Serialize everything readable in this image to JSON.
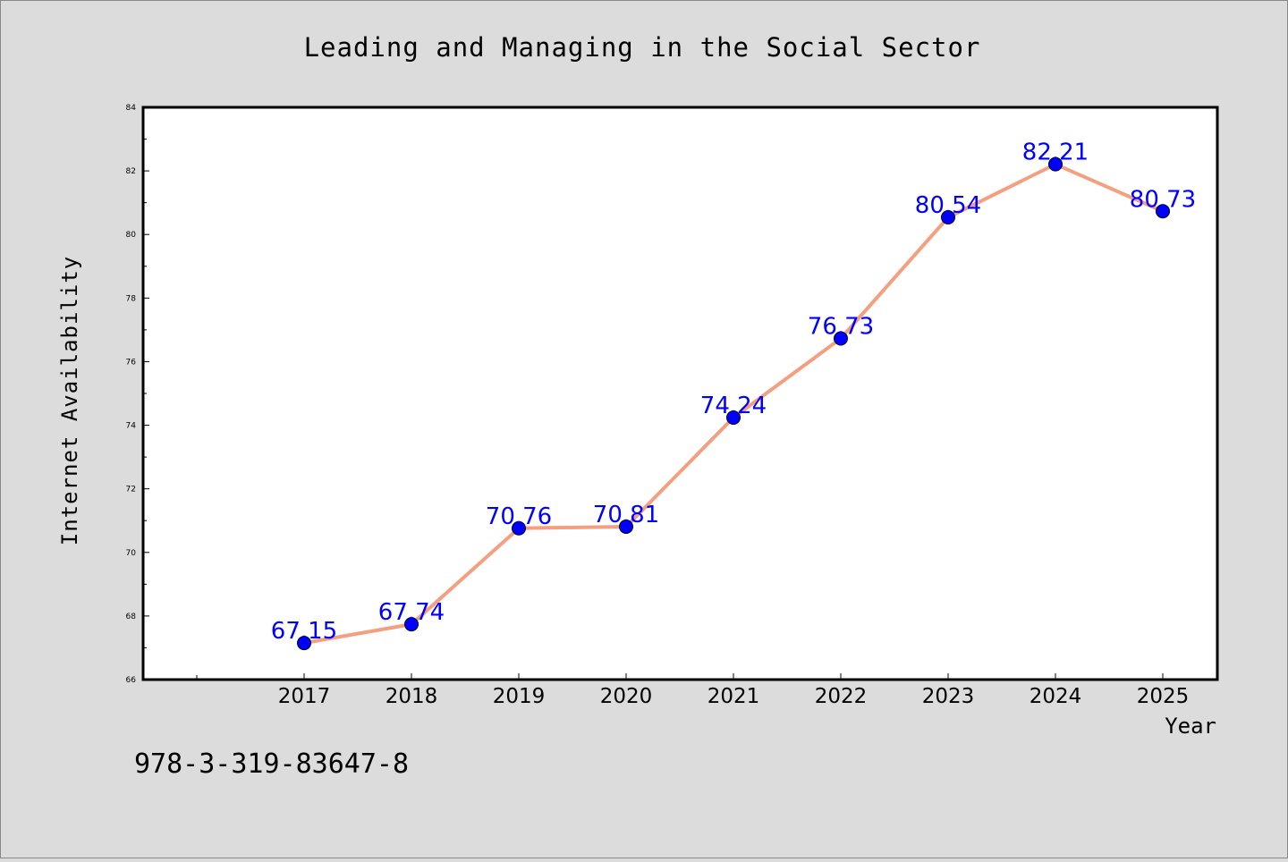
{
  "chart_data": {
    "type": "line",
    "title": "Leading and Managing in the Social Sector",
    "xlabel": "Year",
    "ylabel": "Internet Availability",
    "categories": [
      "2017",
      "2018",
      "2019",
      "2020",
      "2021",
      "2022",
      "2023",
      "2024",
      "2025"
    ],
    "series": [
      {
        "values": [
          67.15,
          67.74,
          70.76,
          70.81,
          74.24,
          76.73,
          80.54,
          82.21,
          80.73
        ],
        "data_labels": [
          "67.15",
          "67.74",
          "70.76",
          "70.81",
          "74.24",
          "76.73",
          "80.54",
          "82.21",
          "80.73"
        ]
      }
    ],
    "ylim": [
      66,
      84
    ],
    "y_ticks": [
      "66",
      "68",
      "70",
      "72",
      "74",
      "76",
      "78",
      "80",
      "82",
      "84"
    ],
    "grid": false,
    "legend": "none",
    "colors": {
      "line": "#f4a080",
      "marker": "#0000ff",
      "data_label": "#0000ff",
      "background": "#dcdcdc",
      "plot_background": "#ffffff"
    }
  },
  "footer_code": "978-3-319-83647-8"
}
